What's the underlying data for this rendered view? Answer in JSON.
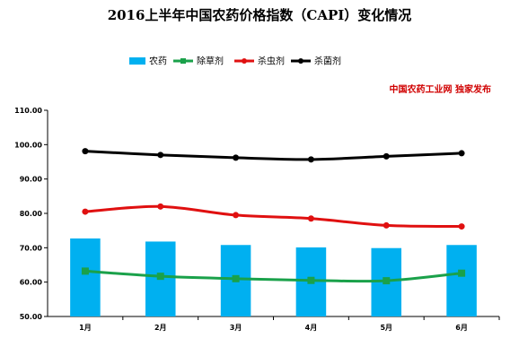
{
  "chart_data": {
    "type": "bar+line",
    "title": "2016上半年中国农药价格指数（CAPI）变化情况",
    "annotation": "中国农药工业网 独家发布",
    "categories": [
      "1月",
      "2月",
      "3月",
      "4月",
      "5月",
      "6月"
    ],
    "ylim": [
      50,
      110
    ],
    "yticks": [
      "50.00",
      "60.00",
      "70.00",
      "80.00",
      "90.00",
      "100.00",
      "110.00"
    ],
    "ytick_values": [
      50,
      60,
      70,
      80,
      90,
      100,
      110
    ],
    "grid": false,
    "legend_position": "top",
    "series": [
      {
        "name": "农药",
        "type": "bar",
        "color": "#00b0f0",
        "marker": "none",
        "values": [
          72.7,
          71.8,
          70.8,
          70.1,
          69.9,
          70.8
        ]
      },
      {
        "name": "除草剂",
        "type": "line",
        "color": "#1aa14a",
        "marker": "square",
        "values": [
          63.2,
          61.7,
          61.0,
          60.5,
          60.4,
          62.6
        ]
      },
      {
        "name": "杀虫剂",
        "type": "line",
        "color": "#e01010",
        "marker": "circle",
        "values": [
          80.5,
          82.0,
          79.5,
          78.5,
          76.5,
          76.2
        ]
      },
      {
        "name": "杀菌剂",
        "type": "line",
        "color": "#000000",
        "marker": "circle",
        "values": [
          98.1,
          97.0,
          96.2,
          95.7,
          96.6,
          97.5
        ]
      }
    ]
  }
}
